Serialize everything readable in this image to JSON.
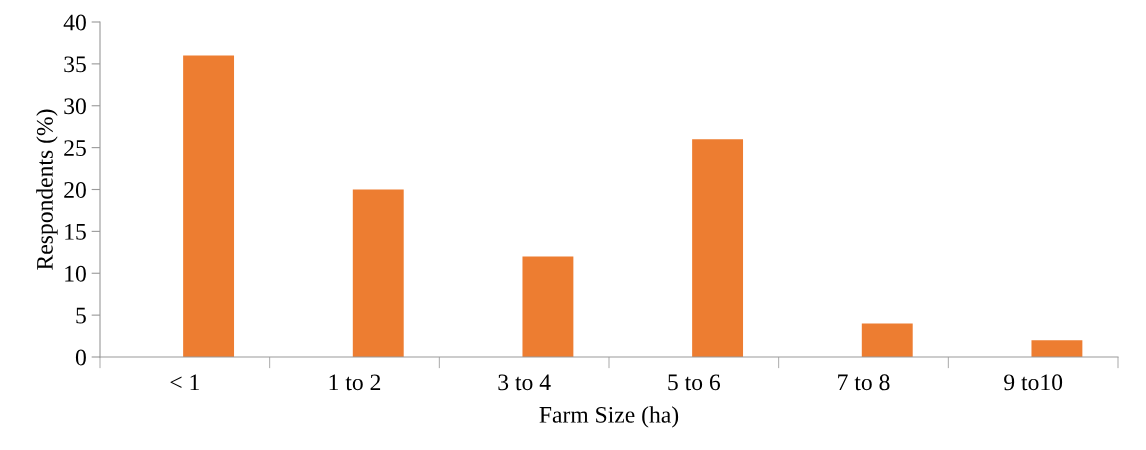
{
  "chart_data": {
    "type": "bar",
    "xlabel": "Farm Size (ha)",
    "ylabel": "Respondents (%)",
    "categories": [
      "< 1",
      "1 to 2",
      "3 to 4",
      "5 to 6",
      "7 to 8",
      "9 to10"
    ],
    "values": [
      36,
      20,
      12,
      26,
      4,
      2
    ],
    "color": "#ed7d31",
    "ylim": [
      0,
      40
    ],
    "yticks": [
      0,
      5,
      10,
      15,
      20,
      25,
      30,
      35,
      40
    ],
    "grid": false
  }
}
